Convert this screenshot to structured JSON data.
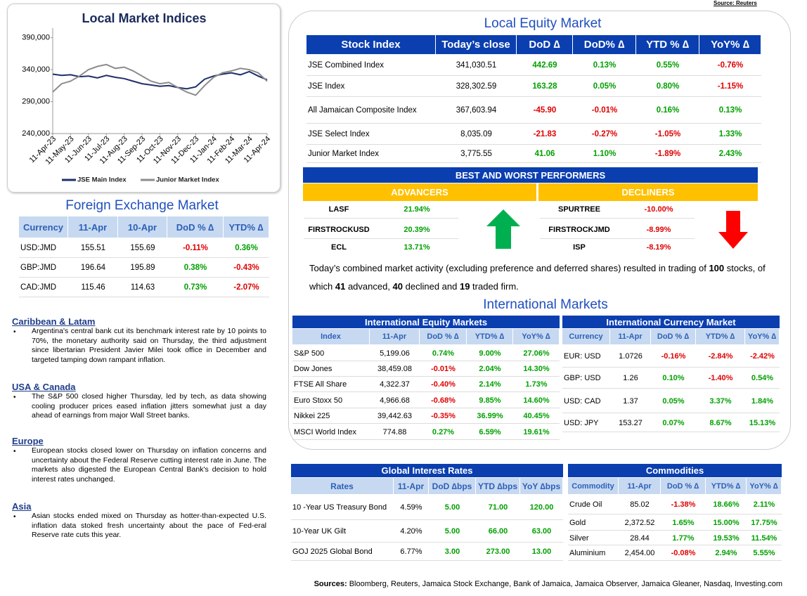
{
  "source_note": "Source: Reuters",
  "chart_data": {
    "type": "line",
    "title": "Local Market Indices",
    "categories": [
      "11-Apr-23",
      null,
      "11-May-23",
      null,
      "11-Jun-23",
      null,
      "11-Jul-23",
      null,
      "11-Aug-23",
      null,
      "11-Sep-23",
      null,
      "11-Oct-23",
      null,
      "11-Nov-23",
      null,
      "11-Dec-23",
      null,
      "11-Jan-24",
      null,
      "11-Feb-24",
      null,
      "11-Mar-24",
      null,
      "11-Apr-24"
    ],
    "series": [
      {
        "name": "JSE Main Index",
        "color": "#1f2f6b",
        "values": [
          333000,
          331000,
          332000,
          329000,
          330000,
          327000,
          331000,
          328000,
          326000,
          322000,
          318000,
          316000,
          314000,
          315000,
          312000,
          310000,
          313000,
          325000,
          330000,
          333000,
          335000,
          332000,
          337000,
          330000,
          324000
        ]
      },
      {
        "name": "Junior Market Index",
        "color": "#8c8c8c",
        "values": [
          305000,
          318000,
          322000,
          330000,
          340000,
          345000,
          348000,
          342000,
          344000,
          338000,
          330000,
          322000,
          318000,
          320000,
          312000,
          305000,
          300000,
          315000,
          328000,
          335000,
          338000,
          342000,
          340000,
          335000,
          322000
        ]
      }
    ],
    "ylim": [
      240000,
      405000
    ],
    "yticks": [
      {
        "value": 240000,
        "label": "240,000"
      },
      {
        "value": 290000,
        "label": "290,000"
      },
      {
        "value": 340000,
        "label": "340,000"
      },
      {
        "value": 390000,
        "label": "390,000"
      }
    ],
    "grid": false,
    "legend": "bottom"
  },
  "fx": {
    "title": "Foreign Exchange Market",
    "headers": [
      "Currency",
      "11-Apr",
      "10-Apr",
      "DoD % ∆",
      "YTD% ∆"
    ],
    "rows": [
      [
        "USD:JMD",
        "155.51",
        "155.69",
        "-0.11%",
        "0.36%"
      ],
      [
        "GBP:JMD",
        "196.64",
        "195.89",
        "0.38%",
        "-0.43%"
      ],
      [
        "CAD:JMD",
        "115.46",
        "114.63",
        "0.73%",
        "-2.07%"
      ]
    ]
  },
  "news": [
    {
      "heading": "Caribbean & Latam",
      "text": "Argentina's central bank cut its benchmark interest rate by 10 points to 70%, the monetary authority said on Thursday, the third adjustment since libertarian President Javier Milei took office in December and targeted tamping down rampant inflation."
    },
    {
      "heading": "USA & Canada",
      "text": "The S&P 500 closed higher Thursday, led by tech, as data showing cooling producer prices eased inflation jitters somewhat just a day ahead of earnings from major Wall Street banks."
    },
    {
      "heading": "Europe",
      "text": "European stocks closed lower on Thursday on inflation concerns and uncertainty about the Federal Reserve cutting interest rate in June. The markets also digested the European Central Bank's decision to hold interest rates unchanged."
    },
    {
      "heading": "Asia",
      "text": "Asian stocks ended mixed on Thursday as hotter-than-expected U.S. inflation data stoked fresh uncertainty about the pace of Fed-eral Reserve rate cuts this year."
    }
  ],
  "local_equity": {
    "title": "Local Equity Market",
    "headers": [
      "Stock Index",
      "Today’s close",
      "DoD  ∆",
      "DoD% ∆",
      "YTD % ∆",
      "YoY% ∆"
    ],
    "rows": [
      [
        "JSE Combined Index",
        "341,030.51",
        "442.69",
        "0.13%",
        "0.55%",
        "-0.76%"
      ],
      [
        "JSE Index",
        "328,302.59",
        "163.28",
        "0.05%",
        "0.80%",
        "-1.15%"
      ],
      [
        "All Jamaican Composite Index",
        "367,603.94",
        "-45.90",
        "-0.01%",
        "0.16%",
        "0.13%"
      ],
      [
        "JSE Select Index",
        "8,035.09",
        "-21.83",
        "-0.27%",
        "-1.05%",
        "1.33%"
      ],
      [
        "Junior Market Index",
        "3,775.55",
        "41.06",
        "1.10%",
        "-1.89%",
        "2.43%"
      ]
    ]
  },
  "performers": {
    "title": "BEST AND WORST PERFORMERS",
    "advancers": {
      "title": "ADVANCERS",
      "rows": [
        [
          "LASF",
          "21.94%"
        ],
        [
          "FIRSTROCKUSD",
          "20.39%"
        ],
        [
          "ECL",
          "13.71%"
        ]
      ]
    },
    "decliners": {
      "title": "DECLINERS",
      "rows": [
        [
          "SPURTREE",
          "-10.00%"
        ],
        [
          "FIRSTROCKJMD",
          "-8.99%"
        ],
        [
          "ISP",
          "-8.19%"
        ]
      ]
    }
  },
  "summary": [
    "Today’s combined market activity (excluding preference and deferred shares) resulted in trading of ",
    "100",
    " stocks, of which ",
    "41",
    " advanced, ",
    "40",
    " declined and ",
    "19",
    " traded firm."
  ],
  "intl_title": "International Markets",
  "intl_equity": {
    "title": "International Equity Markets",
    "headers": [
      "Index",
      "11-Apr",
      "DoD % ∆",
      "YTD% ∆",
      "YoY% ∆"
    ],
    "rows": [
      [
        "S&P 500",
        "5,199.06",
        "0.74%",
        "9.00%",
        "27.06%"
      ],
      [
        "Dow Jones",
        "38,459.08",
        "-0.01%",
        "2.04%",
        "14.30%"
      ],
      [
        "FTSE All Share",
        "4,322.37",
        "-0.40%",
        "2.14%",
        "1.73%"
      ],
      [
        "Euro Stoxx 50",
        "4,966.68",
        "-0.68%",
        "9.85%",
        "14.60%"
      ],
      [
        "Nikkei 225",
        "39,442.63",
        "-0.35%",
        "36.99%",
        "40.45%"
      ],
      [
        "MSCI World Index",
        "774.88",
        "0.27%",
        "6.59%",
        "19.61%"
      ]
    ]
  },
  "intl_currency": {
    "title": "International Currency Market",
    "headers": [
      "Currency",
      "11-Apr",
      "DoD % ∆",
      "YTD% ∆",
      "YoY% ∆"
    ],
    "rows": [
      [
        "EUR: USD",
        "1.0726",
        "-0.16%",
        "-2.84%",
        "-2.42%"
      ],
      [
        "GBP: USD",
        "1.26",
        "0.10%",
        "-1.40%",
        "0.54%"
      ],
      [
        "USD: CAD",
        "1.37",
        "0.05%",
        "3.37%",
        "1.84%"
      ],
      [
        "USD: JPY",
        "153.27",
        "0.07%",
        "8.67%",
        "15.13%"
      ]
    ]
  },
  "interest_rates": {
    "title": "Global Interest Rates",
    "headers": [
      "Rates",
      "11-Apr",
      "DoD ∆bps",
      "YTD ∆bps",
      "YoY ∆bps"
    ],
    "rows": [
      [
        "10 -Year US Treasury Bond",
        "4.59%",
        "5.00",
        "71.00",
        "120.00"
      ],
      [
        "10-Year UK Gilt",
        "4.20%",
        "5.00",
        "66.00",
        "63.00"
      ],
      [
        "GOJ 2025 Global Bond",
        "6.77%",
        "3.00",
        "273.00",
        "13.00"
      ]
    ]
  },
  "commodities": {
    "title": "Commodities",
    "headers": [
      "Commodity",
      "11-Apr",
      "DoD % ∆",
      "YTD% ∆",
      "YoY% ∆"
    ],
    "rows": [
      [
        "Crude Oil",
        "85.02",
        "-1.38%",
        "18.66%",
        "2.11%"
      ],
      [
        "Gold",
        "2,372.52",
        "1.65%",
        "15.00%",
        "17.75%"
      ],
      [
        "Silver",
        "28.44",
        "1.77%",
        "19.53%",
        "11.54%"
      ],
      [
        "Aluminium",
        "2,454.00",
        "-0.08%",
        "2.94%",
        "5.55%"
      ]
    ]
  },
  "sources": {
    "label": "Sources:",
    "text": " Bloomberg, Reuters, Jamaica Stock Exchange, Bank of Jamaica, Jamaica Observer, Jamaica Gleaner, Nasdaq, Investing.com"
  }
}
